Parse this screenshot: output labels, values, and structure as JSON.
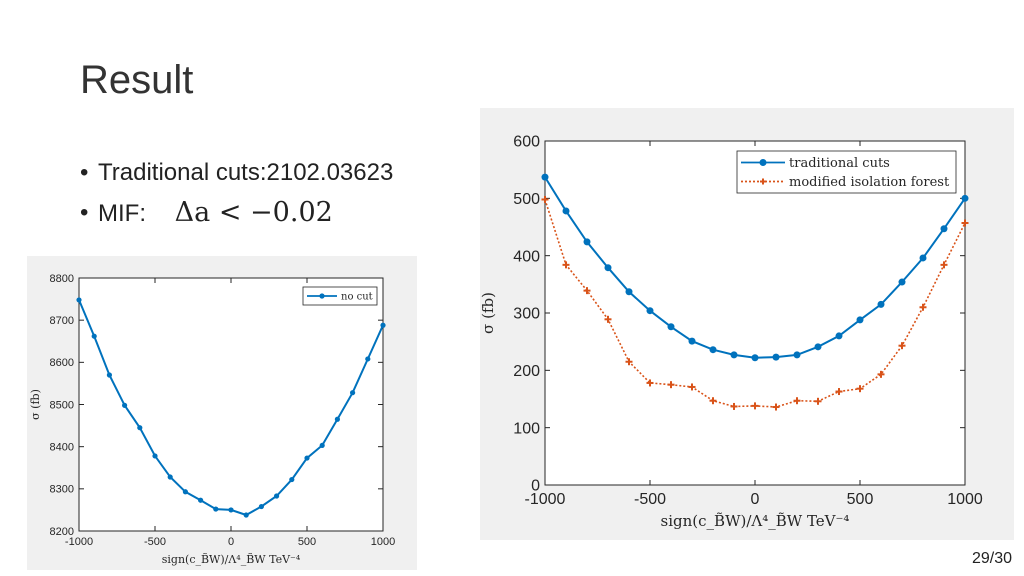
{
  "slide": {
    "title": "Result",
    "bullets": [
      {
        "label": "Traditional cuts:2102.03623"
      },
      {
        "label": "MIF:",
        "math": "Δa < −0.02"
      }
    ],
    "page_number": "29/30"
  },
  "chart_data": [
    {
      "type": "line",
      "xlabel": "sign(c_B̃W)/Λ⁴_B̃W TeV⁻⁴",
      "ylabel": "σ (fb)",
      "xlim": [
        -1000,
        1000
      ],
      "ylim": [
        8200,
        8800
      ],
      "xticks": [
        "-1000",
        "-500",
        "0",
        "500",
        "1000"
      ],
      "yticks": [
        "8200",
        "8300",
        "8400",
        "8500",
        "8600",
        "8700",
        "8800"
      ],
      "legend_position": "top-right",
      "grid": false,
      "x": [
        -1000,
        -900,
        -800,
        -700,
        -600,
        -500,
        -400,
        -300,
        -200,
        -100,
        0,
        100,
        200,
        300,
        400,
        500,
        600,
        700,
        800,
        900,
        1000
      ],
      "series": [
        {
          "name": "no cut",
          "color": "#0072bd",
          "style": "solid",
          "marker": "dot",
          "values": [
            8748,
            8662,
            8570,
            8498,
            8445,
            8378,
            8328,
            8293,
            8273,
            8252,
            8250,
            8238,
            8258,
            8283,
            8322,
            8373,
            8403,
            8465,
            8528,
            8608,
            8688
          ]
        }
      ]
    },
    {
      "type": "line",
      "xlabel": "sign(c_B̃W)/Λ⁴_B̃W TeV⁻⁴",
      "ylabel": "σ (fb)",
      "xlim": [
        -1000,
        1000
      ],
      "ylim": [
        0,
        600
      ],
      "xticks": [
        "-1000",
        "-500",
        "0",
        "500",
        "1000"
      ],
      "yticks": [
        "0",
        "100",
        "200",
        "300",
        "400",
        "500",
        "600"
      ],
      "legend_position": "top-right",
      "grid": false,
      "x": [
        -1000,
        -900,
        -800,
        -700,
        -600,
        -500,
        -400,
        -300,
        -200,
        -100,
        0,
        100,
        200,
        300,
        400,
        500,
        600,
        700,
        800,
        900,
        1000
      ],
      "series": [
        {
          "name": "traditional cuts",
          "color": "#0072bd",
          "style": "solid",
          "marker": "dot",
          "values": [
            537,
            478,
            424,
            379,
            337,
            304,
            276,
            251,
            236,
            227,
            222,
            223,
            227,
            241,
            260,
            288,
            315,
            354,
            396,
            447,
            500
          ]
        },
        {
          "name": "modified isolation forest",
          "color": "#d95319",
          "style": "dotted",
          "marker": "plus",
          "values": [
            498,
            384,
            339,
            289,
            215,
            178,
            175,
            171,
            147,
            137,
            138,
            136,
            147,
            146,
            163,
            168,
            193,
            243,
            310,
            384,
            457
          ]
        }
      ]
    }
  ]
}
